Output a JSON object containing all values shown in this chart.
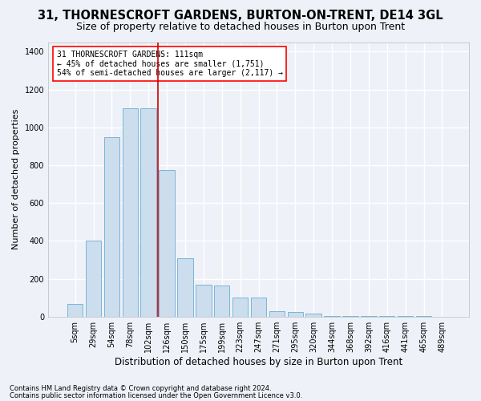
{
  "title": "31, THORNESCROFT GARDENS, BURTON-ON-TRENT, DE14 3GL",
  "subtitle": "Size of property relative to detached houses in Burton upon Trent",
  "xlabel": "Distribution of detached houses by size in Burton upon Trent",
  "ylabel": "Number of detached properties",
  "footnote1": "Contains HM Land Registry data © Crown copyright and database right 2024.",
  "footnote2": "Contains public sector information licensed under the Open Government Licence v3.0.",
  "annotation_line1": "31 THORNESCROFT GARDENS: 111sqm",
  "annotation_line2": "← 45% of detached houses are smaller (1,751)",
  "annotation_line3": "54% of semi-detached houses are larger (2,117) →",
  "bin_labels": [
    "5sqm",
    "29sqm",
    "54sqm",
    "78sqm",
    "102sqm",
    "126sqm",
    "150sqm",
    "175sqm",
    "199sqm",
    "223sqm",
    "247sqm",
    "271sqm",
    "295sqm",
    "320sqm",
    "344sqm",
    "368sqm",
    "392sqm",
    "416sqm",
    "441sqm",
    "465sqm",
    "489sqm"
  ],
  "bar_values": [
    65,
    400,
    950,
    1100,
    1100,
    775,
    310,
    170,
    165,
    100,
    100,
    30,
    25,
    15,
    5,
    5,
    5,
    5,
    5,
    5,
    0
  ],
  "bar_color": "#ccdded",
  "bar_edge_color": "#6aadd5",
  "marker_color": "#cc0000",
  "ylim": [
    0,
    1450
  ],
  "yticks": [
    0,
    200,
    400,
    600,
    800,
    1000,
    1200,
    1400
  ],
  "background_color": "#eef2f8",
  "grid_color": "#ffffff",
  "title_fontsize": 10.5,
  "subtitle_fontsize": 9,
  "xlabel_fontsize": 8.5,
  "ylabel_fontsize": 8,
  "tick_fontsize": 7,
  "annotation_fontsize": 7,
  "footnote_fontsize": 6
}
